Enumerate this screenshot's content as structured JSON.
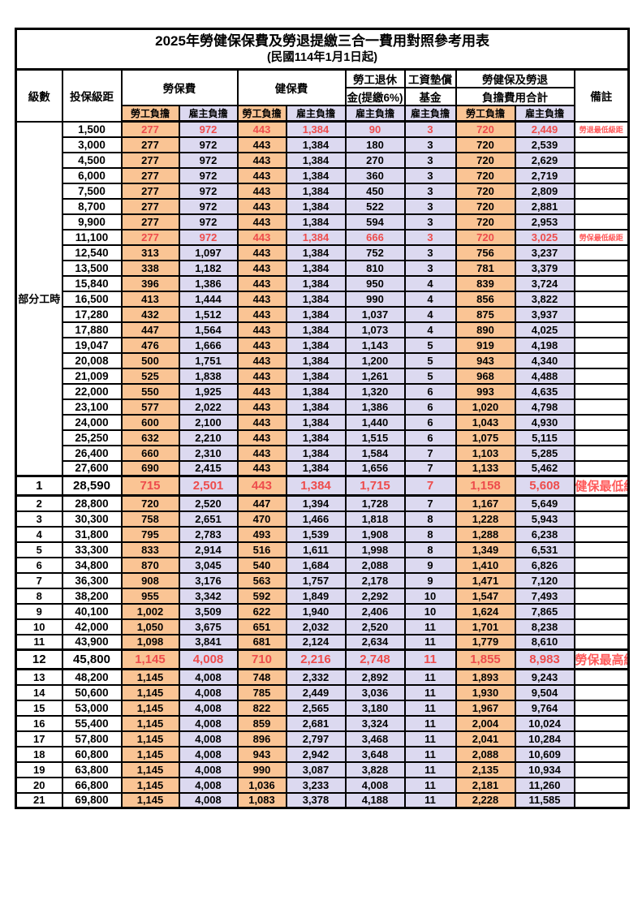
{
  "title": "2025年勞健保保費及勞退提繳三合一費用對照參考用表",
  "subtitle": "(民國114年1月1日起)",
  "colors": {
    "employee_bg": "#FAC494",
    "employer_bg": "#DCD9F0",
    "highlight": "#EE4C4C",
    "remark": "#FF5A5A"
  },
  "header": {
    "level": "級數",
    "bracket": "投保級距",
    "labor": "勞保費",
    "health": "健保費",
    "pension_1": "勞工退休",
    "pension_2": "金(提繳6%)",
    "fund_1": "工資墊償",
    "fund_2": "基金",
    "total_1": "勞健保及勞退",
    "total_2": "負擔費用合計",
    "remark": "備註",
    "employee": "勞工負擔",
    "employer": "雇主負擔"
  },
  "group_label": "部分工時",
  "rows": [
    {
      "level": "",
      "bracket": "1,500",
      "values": [
        "277",
        "972",
        "443",
        "1,384",
        "90",
        "3",
        "720",
        "2,449"
      ],
      "remark": "勞退最低級距",
      "hl": true
    },
    {
      "level": "",
      "bracket": "3,000",
      "values": [
        "277",
        "972",
        "443",
        "1,384",
        "180",
        "3",
        "720",
        "2,539"
      ],
      "remark": ""
    },
    {
      "level": "",
      "bracket": "4,500",
      "values": [
        "277",
        "972",
        "443",
        "1,384",
        "270",
        "3",
        "720",
        "2,629"
      ],
      "remark": ""
    },
    {
      "level": "",
      "bracket": "6,000",
      "values": [
        "277",
        "972",
        "443",
        "1,384",
        "360",
        "3",
        "720",
        "2,719"
      ],
      "remark": ""
    },
    {
      "level": "",
      "bracket": "7,500",
      "values": [
        "277",
        "972",
        "443",
        "1,384",
        "450",
        "3",
        "720",
        "2,809"
      ],
      "remark": ""
    },
    {
      "level": "",
      "bracket": "8,700",
      "values": [
        "277",
        "972",
        "443",
        "1,384",
        "522",
        "3",
        "720",
        "2,881"
      ],
      "remark": ""
    },
    {
      "level": "",
      "bracket": "9,900",
      "values": [
        "277",
        "972",
        "443",
        "1,384",
        "594",
        "3",
        "720",
        "2,953"
      ],
      "remark": ""
    },
    {
      "level": "",
      "bracket": "11,100",
      "values": [
        "277",
        "972",
        "443",
        "1,384",
        "666",
        "3",
        "720",
        "3,025"
      ],
      "remark": "勞保最低級距",
      "hl": true
    },
    {
      "level": "",
      "bracket": "12,540",
      "values": [
        "313",
        "1,097",
        "443",
        "1,384",
        "752",
        "3",
        "756",
        "3,237"
      ],
      "remark": ""
    },
    {
      "level": "",
      "bracket": "13,500",
      "values": [
        "338",
        "1,182",
        "443",
        "1,384",
        "810",
        "3",
        "781",
        "3,379"
      ],
      "remark": ""
    },
    {
      "level": "",
      "bracket": "15,840",
      "values": [
        "396",
        "1,386",
        "443",
        "1,384",
        "950",
        "4",
        "839",
        "3,724"
      ],
      "remark": ""
    },
    {
      "level": "",
      "bracket": "16,500",
      "values": [
        "413",
        "1,444",
        "443",
        "1,384",
        "990",
        "4",
        "856",
        "3,822"
      ],
      "remark": ""
    },
    {
      "level": "",
      "bracket": "17,280",
      "values": [
        "432",
        "1,512",
        "443",
        "1,384",
        "1,037",
        "4",
        "875",
        "3,937"
      ],
      "remark": ""
    },
    {
      "level": "",
      "bracket": "17,880",
      "values": [
        "447",
        "1,564",
        "443",
        "1,384",
        "1,073",
        "4",
        "890",
        "4,025"
      ],
      "remark": ""
    },
    {
      "level": "",
      "bracket": "19,047",
      "values": [
        "476",
        "1,666",
        "443",
        "1,384",
        "1,143",
        "5",
        "919",
        "4,198"
      ],
      "remark": ""
    },
    {
      "level": "",
      "bracket": "20,008",
      "values": [
        "500",
        "1,751",
        "443",
        "1,384",
        "1,200",
        "5",
        "943",
        "4,340"
      ],
      "remark": ""
    },
    {
      "level": "",
      "bracket": "21,009",
      "values": [
        "525",
        "1,838",
        "443",
        "1,384",
        "1,261",
        "5",
        "968",
        "4,488"
      ],
      "remark": ""
    },
    {
      "level": "",
      "bracket": "22,000",
      "values": [
        "550",
        "1,925",
        "443",
        "1,384",
        "1,320",
        "6",
        "993",
        "4,635"
      ],
      "remark": ""
    },
    {
      "level": "",
      "bracket": "23,100",
      "values": [
        "577",
        "2,022",
        "443",
        "1,384",
        "1,386",
        "6",
        "1,020",
        "4,798"
      ],
      "remark": ""
    },
    {
      "level": "",
      "bracket": "24,000",
      "values": [
        "600",
        "2,100",
        "443",
        "1,384",
        "1,440",
        "6",
        "1,043",
        "4,930"
      ],
      "remark": ""
    },
    {
      "level": "",
      "bracket": "25,250",
      "values": [
        "632",
        "2,210",
        "443",
        "1,384",
        "1,515",
        "6",
        "1,075",
        "5,115"
      ],
      "remark": ""
    },
    {
      "level": "",
      "bracket": "26,400",
      "values": [
        "660",
        "2,310",
        "443",
        "1,384",
        "1,584",
        "7",
        "1,103",
        "5,285"
      ],
      "remark": ""
    },
    {
      "level": "",
      "bracket": "27,600",
      "values": [
        "690",
        "2,415",
        "443",
        "1,384",
        "1,656",
        "7",
        "1,133",
        "5,462"
      ],
      "remark": ""
    },
    {
      "level": "1",
      "bracket": "28,590",
      "values": [
        "715",
        "2,501",
        "443",
        "1,384",
        "1,715",
        "7",
        "1,158",
        "5,608"
      ],
      "remark": "健保最低級距",
      "hl": true,
      "big": true
    },
    {
      "level": "2",
      "bracket": "28,800",
      "values": [
        "720",
        "2,520",
        "447",
        "1,394",
        "1,728",
        "7",
        "1,167",
        "5,649"
      ],
      "remark": ""
    },
    {
      "level": "3",
      "bracket": "30,300",
      "values": [
        "758",
        "2,651",
        "470",
        "1,466",
        "1,818",
        "8",
        "1,228",
        "5,943"
      ],
      "remark": ""
    },
    {
      "level": "4",
      "bracket": "31,800",
      "values": [
        "795",
        "2,783",
        "493",
        "1,539",
        "1,908",
        "8",
        "1,288",
        "6,238"
      ],
      "remark": ""
    },
    {
      "level": "5",
      "bracket": "33,300",
      "values": [
        "833",
        "2,914",
        "516",
        "1,611",
        "1,998",
        "8",
        "1,349",
        "6,531"
      ],
      "remark": ""
    },
    {
      "level": "6",
      "bracket": "34,800",
      "values": [
        "870",
        "3,045",
        "540",
        "1,684",
        "2,088",
        "9",
        "1,410",
        "6,826"
      ],
      "remark": ""
    },
    {
      "level": "7",
      "bracket": "36,300",
      "values": [
        "908",
        "3,176",
        "563",
        "1,757",
        "2,178",
        "9",
        "1,471",
        "7,120"
      ],
      "remark": ""
    },
    {
      "level": "8",
      "bracket": "38,200",
      "values": [
        "955",
        "3,342",
        "592",
        "1,849",
        "2,292",
        "10",
        "1,547",
        "7,493"
      ],
      "remark": ""
    },
    {
      "level": "9",
      "bracket": "40,100",
      "values": [
        "1,002",
        "3,509",
        "622",
        "1,940",
        "2,406",
        "10",
        "1,624",
        "7,865"
      ],
      "remark": ""
    },
    {
      "level": "10",
      "bracket": "42,000",
      "values": [
        "1,050",
        "3,675",
        "651",
        "2,032",
        "2,520",
        "11",
        "1,701",
        "8,238"
      ],
      "remark": ""
    },
    {
      "level": "11",
      "bracket": "43,900",
      "values": [
        "1,098",
        "3,841",
        "681",
        "2,124",
        "2,634",
        "11",
        "1,779",
        "8,610"
      ],
      "remark": ""
    },
    {
      "level": "12",
      "bracket": "45,800",
      "values": [
        "1,145",
        "4,008",
        "710",
        "2,216",
        "2,748",
        "11",
        "1,855",
        "8,983"
      ],
      "remark": "勞保最高級距",
      "hl": true,
      "big": true
    },
    {
      "level": "13",
      "bracket": "48,200",
      "values": [
        "1,145",
        "4,008",
        "748",
        "2,332",
        "2,892",
        "11",
        "1,893",
        "9,243"
      ],
      "remark": ""
    },
    {
      "level": "14",
      "bracket": "50,600",
      "values": [
        "1,145",
        "4,008",
        "785",
        "2,449",
        "3,036",
        "11",
        "1,930",
        "9,504"
      ],
      "remark": ""
    },
    {
      "level": "15",
      "bracket": "53,000",
      "values": [
        "1,145",
        "4,008",
        "822",
        "2,565",
        "3,180",
        "11",
        "1,967",
        "9,764"
      ],
      "remark": ""
    },
    {
      "level": "16",
      "bracket": "55,400",
      "values": [
        "1,145",
        "4,008",
        "859",
        "2,681",
        "3,324",
        "11",
        "2,004",
        "10,024"
      ],
      "remark": ""
    },
    {
      "level": "17",
      "bracket": "57,800",
      "values": [
        "1,145",
        "4,008",
        "896",
        "2,797",
        "3,468",
        "11",
        "2,041",
        "10,284"
      ],
      "remark": ""
    },
    {
      "level": "18",
      "bracket": "60,800",
      "values": [
        "1,145",
        "4,008",
        "943",
        "2,942",
        "3,648",
        "11",
        "2,088",
        "10,609"
      ],
      "remark": ""
    },
    {
      "level": "19",
      "bracket": "63,800",
      "values": [
        "1,145",
        "4,008",
        "990",
        "3,087",
        "3,828",
        "11",
        "2,135",
        "10,934"
      ],
      "remark": ""
    },
    {
      "level": "20",
      "bracket": "66,800",
      "values": [
        "1,145",
        "4,008",
        "1,036",
        "3,233",
        "4,008",
        "11",
        "2,181",
        "11,260"
      ],
      "remark": ""
    },
    {
      "level": "21",
      "bracket": "69,800",
      "values": [
        "1,145",
        "4,008",
        "1,083",
        "3,378",
        "4,188",
        "11",
        "2,228",
        "11,585"
      ],
      "remark": ""
    }
  ]
}
